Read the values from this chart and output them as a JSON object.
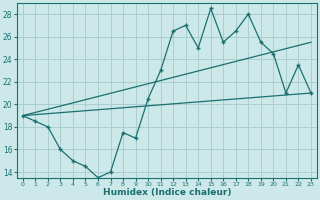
{
  "xlabel": "Humidex (Indice chaleur)",
  "ylabel": "",
  "bg_color": "#cce8e8",
  "grid_color": "#aacfcf",
  "line_color": "#1a7070",
  "xlim": [
    -0.5,
    23.5
  ],
  "ylim": [
    13.5,
    29.0
  ],
  "xticks": [
    0,
    1,
    2,
    3,
    4,
    5,
    6,
    7,
    8,
    9,
    10,
    11,
    12,
    13,
    14,
    15,
    16,
    17,
    18,
    19,
    20,
    21,
    22,
    23
  ],
  "yticks": [
    14,
    16,
    18,
    20,
    22,
    24,
    26,
    28
  ],
  "line1_x": [
    0,
    1,
    2,
    3,
    4,
    5,
    6,
    7,
    8,
    9,
    10,
    11,
    12,
    13,
    14,
    15,
    16,
    17,
    18,
    19,
    20,
    21,
    22,
    23
  ],
  "line1_y": [
    19.0,
    18.5,
    18.0,
    16.0,
    15.0,
    14.5,
    13.5,
    14.0,
    17.5,
    17.0,
    20.5,
    23.0,
    26.5,
    27.0,
    25.0,
    28.5,
    25.5,
    26.5,
    28.0,
    25.5,
    24.5,
    21.0,
    23.5,
    21.0
  ],
  "line2_x": [
    0,
    23
  ],
  "line2_y": [
    19.0,
    21.0
  ],
  "line3_x": [
    0,
    23
  ],
  "line3_y": [
    19.0,
    25.5
  ]
}
